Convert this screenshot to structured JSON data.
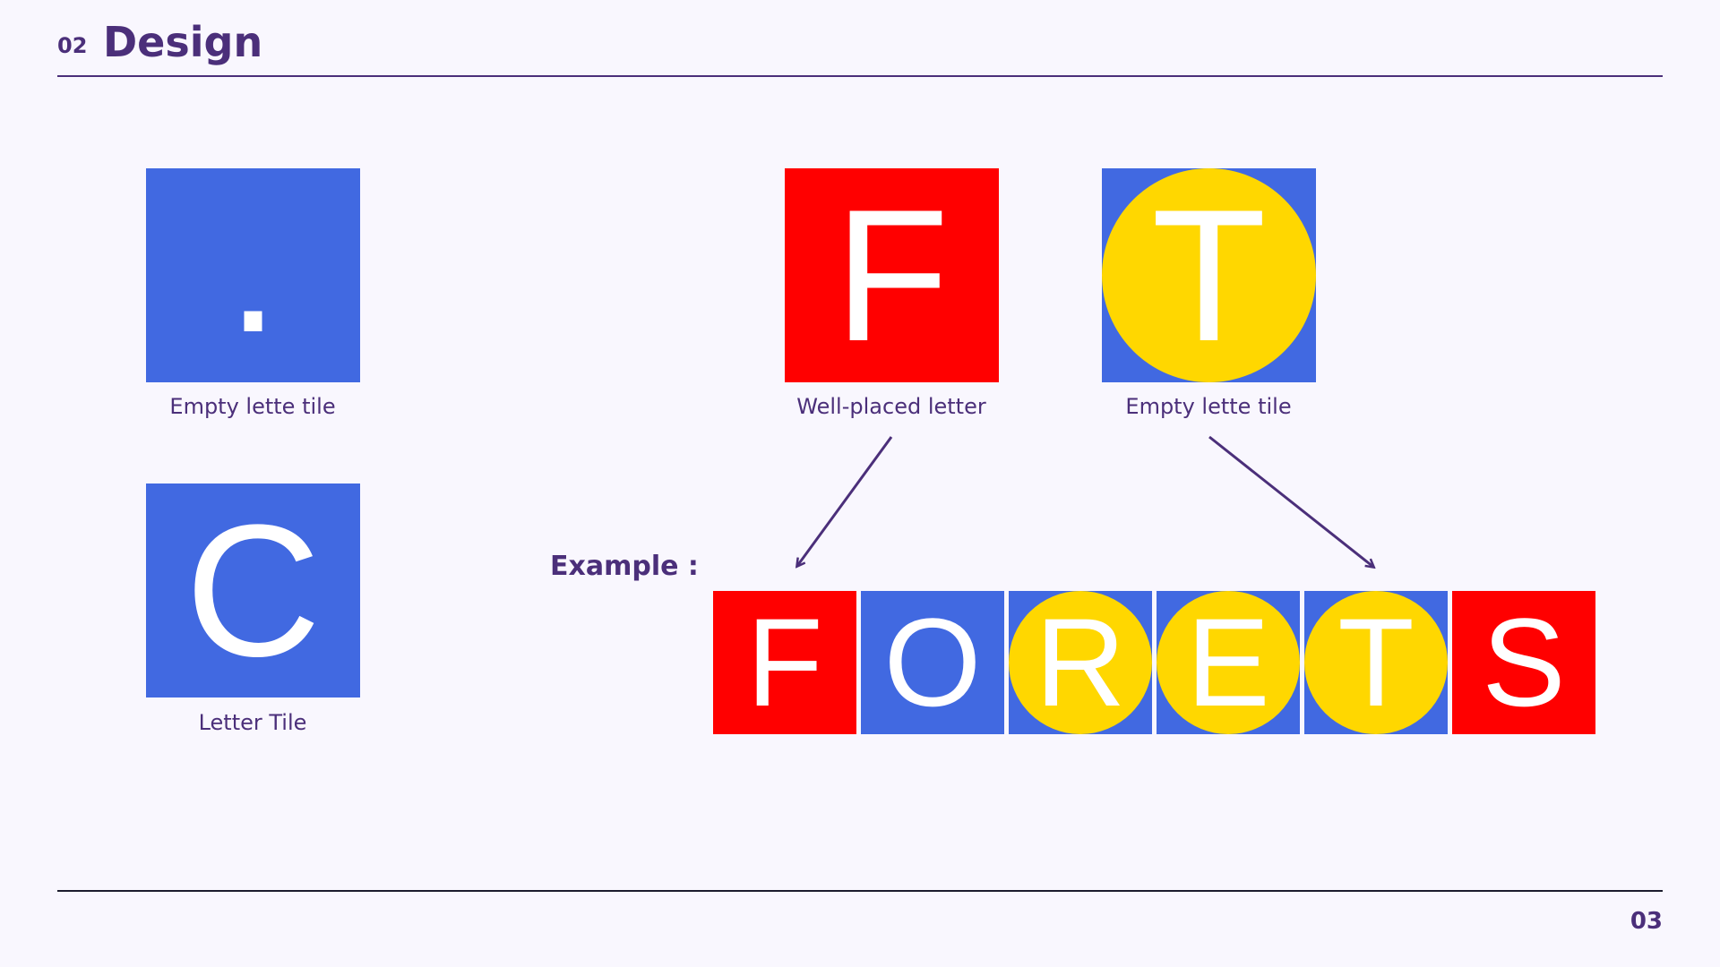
{
  "header": {
    "number": "02",
    "title": "Design"
  },
  "footer": {
    "page_number": "03"
  },
  "colors": {
    "background": "#F9F7FE",
    "accent": "#4B2F7A",
    "blue": "#4169E1",
    "red": "#FF0000",
    "yellow": "#FFD700",
    "letter": "#FFFFFF"
  },
  "legend": [
    {
      "letter": ".",
      "bg": "blue",
      "circle": null,
      "caption": "Empty lette tile"
    },
    {
      "letter": "C",
      "bg": "blue",
      "circle": null,
      "caption": "Letter Tile"
    },
    {
      "letter": "F",
      "bg": "red",
      "circle": null,
      "caption": "Well-placed letter"
    },
    {
      "letter": "T",
      "bg": "blue",
      "circle": "yellow",
      "caption": "Empty lette tile"
    }
  ],
  "example": {
    "label": "Example :",
    "tiles": [
      {
        "letter": "F",
        "bg": "red",
        "circle": null
      },
      {
        "letter": "O",
        "bg": "blue",
        "circle": null
      },
      {
        "letter": "R",
        "bg": "blue",
        "circle": "yellow"
      },
      {
        "letter": "E",
        "bg": "blue",
        "circle": "yellow"
      },
      {
        "letter": "T",
        "bg": "blue",
        "circle": "yellow"
      },
      {
        "letter": "S",
        "bg": "red",
        "circle": null
      }
    ]
  }
}
